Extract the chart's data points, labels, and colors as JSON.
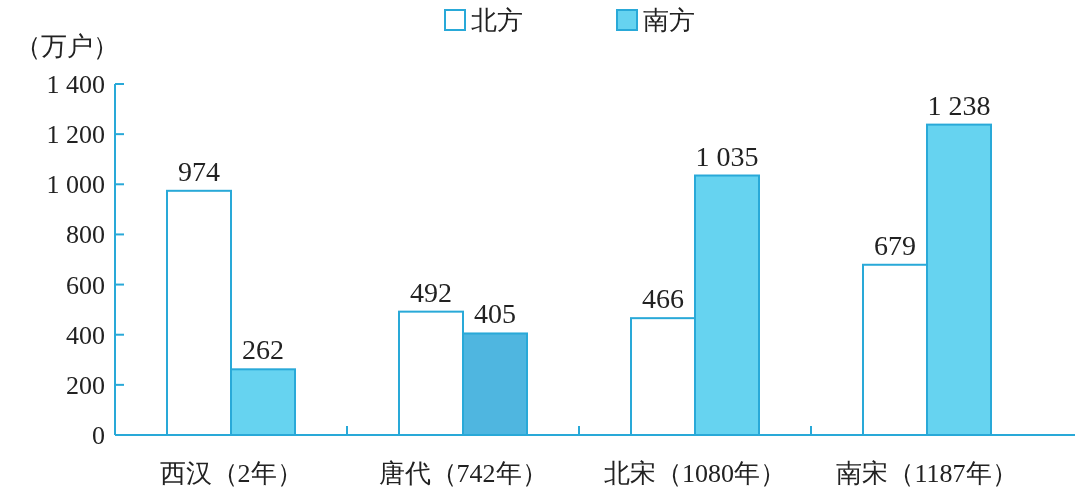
{
  "chart_data": {
    "type": "bar",
    "ylabel": "（万户）",
    "categories": [
      "西汉（2年）",
      "唐代（742年）",
      "北宋（1080年）",
      "南宋（1187年）"
    ],
    "series": [
      {
        "name": "北方",
        "color": "#ffffff",
        "values": [
          974,
          492,
          466,
          679
        ],
        "value_labels": [
          "974",
          "492",
          "466",
          "679"
        ]
      },
      {
        "name": "南方",
        "color": "#66d3f0",
        "colors": [
          "#66d3f0",
          "#4fb6e0",
          "#66d3f0",
          "#66d3f0"
        ],
        "values": [
          262,
          405,
          1035,
          1238
        ],
        "value_labels": [
          "262",
          "405",
          "1 035",
          "1 238"
        ]
      }
    ],
    "ylim": [
      0,
      1400
    ],
    "yticks": [
      0,
      200,
      400,
      600,
      800,
      {
        "value": 1000,
        "label": "1 000"
      },
      {
        "value": 1200,
        "label": "1 200"
      },
      {
        "value": 1400,
        "label": "1 400"
      }
    ],
    "legend": "top"
  }
}
